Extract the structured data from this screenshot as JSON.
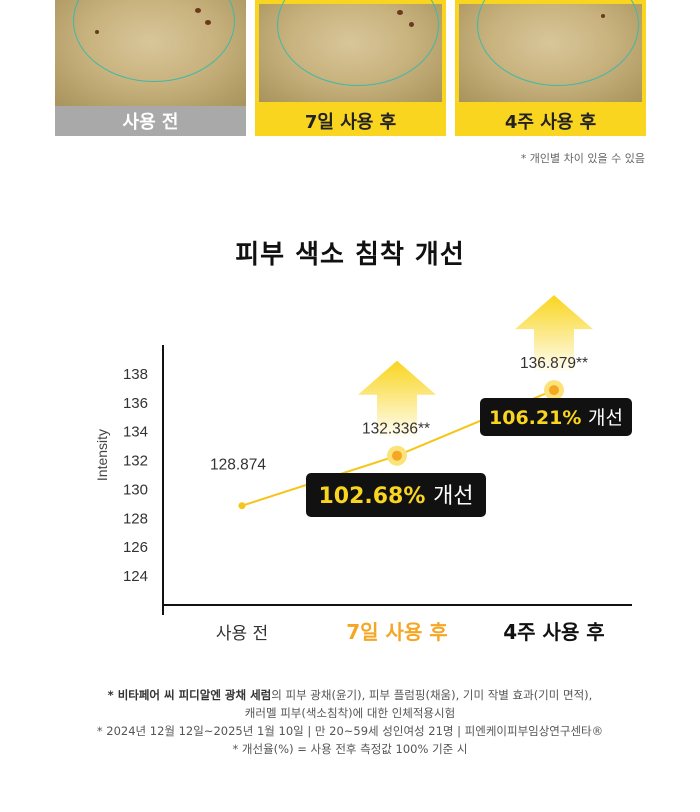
{
  "photos": [
    {
      "label": "사용 전",
      "style": "gray"
    },
    {
      "label": "7일 사용 후",
      "style": "yellow"
    },
    {
      "label": "4주 사용 후",
      "style": "yellow"
    }
  ],
  "note_top": "* 개인별 차이 있을 수 있음",
  "colors": {
    "accent": "#f9d51f",
    "orange": "#f5a623",
    "dark": "#111111"
  },
  "chart_data": {
    "type": "line",
    "title": "피부 색소 침착 개선",
    "ylabel": "Intensity",
    "xlabel": "",
    "ylim": [
      122,
      140
    ],
    "yticks": [
      124,
      126,
      128,
      130,
      132,
      134,
      136,
      138
    ],
    "categories": [
      "사용 전",
      "7일 사용 후",
      "4주 사용 후"
    ],
    "values": [
      128.874,
      132.336,
      136.879
    ],
    "value_labels": [
      "128.874",
      "132.336**",
      "136.879**"
    ],
    "improvements": [
      null,
      "102.68% 개선",
      "106.21% 개선"
    ]
  },
  "footer": {
    "line1_bold": "* 비타페어 씨 피디알엔 광채 세럼",
    "line1_rest": "의 피부 광채(윤기), 피부 플럼핑(채움), 기미 작별 효과(기미 면적),",
    "line2": "캐러멜 피부(색소침착)에 대한 인체적용시험",
    "line3": "* 2024년 12월 12일~2025년 1월 10일 | 만 20~59세 성인여성 21명 | 피엔케이피부임상연구센타®",
    "line4": "* 개선율(%) = 사용 전후 측정값 100% 기준 시"
  }
}
